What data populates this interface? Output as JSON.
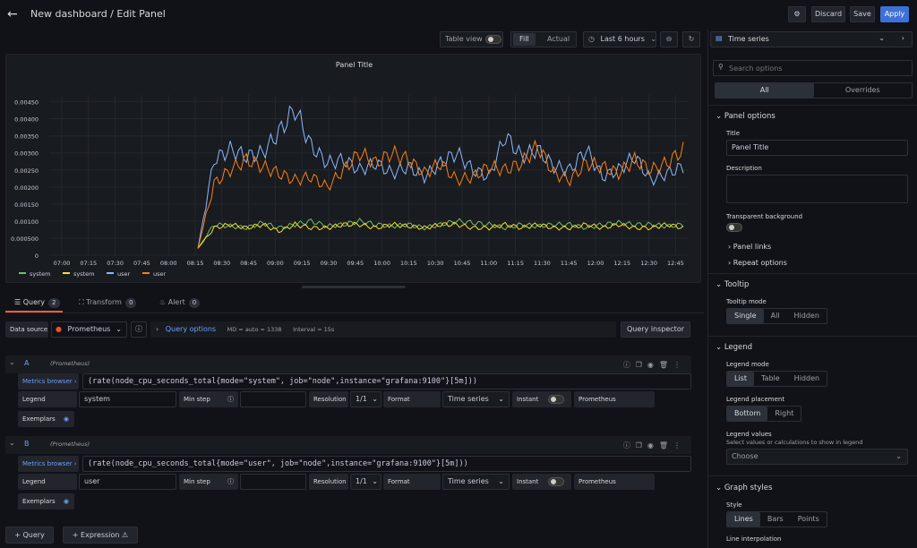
{
  "header": {
    "title": "New dashboard / Edit Panel",
    "discard": "Discard",
    "save": "Save",
    "apply": "Apply"
  },
  "toolbar": {
    "table_view": "Table view",
    "fill": "Fill",
    "actual": "Actual",
    "time_range": "Last 6 hours"
  },
  "panel": {
    "title": "Panel Title"
  },
  "chart_data": {
    "type": "line",
    "title": "Panel Title",
    "x_ticks": [
      "07:00",
      "07:15",
      "07:30",
      "07:45",
      "08:00",
      "08:15",
      "08:30",
      "08:45",
      "09:00",
      "09:15",
      "09:30",
      "09:45",
      "10:00",
      "10:15",
      "10:30",
      "10:45",
      "11:00",
      "11:15",
      "11:30",
      "11:45",
      "12:00",
      "12:15",
      "12:30",
      "12:45"
    ],
    "y_ticks": [
      "0",
      "0.000500",
      "0.00100",
      "0.00150",
      "0.00200",
      "0.00250",
      "0.00300",
      "0.00350",
      "0.00400",
      "0.00450"
    ],
    "ylim": [
      0,
      0.0047
    ],
    "legend_placement": "bottom",
    "series": [
      {
        "name": "system",
        "color": "#73bf69",
        "values": [
          0.0002,
          0.0009,
          0.00085,
          0.0008,
          0.00095,
          0.0008,
          0.0009,
          0.001,
          0.00085,
          0.0009,
          0.001,
          0.0009,
          0.00085,
          0.0009,
          0.0008,
          0.0009,
          0.001,
          0.00095,
          0.0009,
          0.0008,
          0.0009,
          0.00085,
          0.0009,
          0.0009,
          0.0008,
          0.0009,
          0.00095,
          0.0009,
          0.0009,
          0.00085,
          0.0009
        ]
      },
      {
        "name": "system",
        "color": "#fade2a",
        "values": [
          0.0002,
          0.0008,
          0.0009,
          0.0008,
          0.0009,
          0.0007,
          0.0009,
          0.0008,
          0.0008,
          0.0009,
          0.0009,
          0.0008,
          0.0009,
          0.00085,
          0.0008,
          0.0009,
          0.0009,
          0.0008,
          0.0008,
          0.0009,
          0.0008,
          0.0009,
          0.0008,
          0.0008,
          0.0009,
          0.0008,
          0.0009,
          0.0008,
          0.0008,
          0.0009,
          0.0008
        ]
      },
      {
        "name": "user",
        "color": "#8ab8ff",
        "values": [
          0.0002,
          0.0028,
          0.0031,
          0.0029,
          0.003,
          0.0036,
          0.0043,
          0.0032,
          0.0027,
          0.0028,
          0.0025,
          0.0027,
          0.0024,
          0.0026,
          0.0023,
          0.0027,
          0.003,
          0.0025,
          0.0023,
          0.0035,
          0.0029,
          0.0031,
          0.0026,
          0.0025,
          0.0031,
          0.0023,
          0.0025,
          0.0029,
          0.0022,
          0.0024,
          0.0026
        ]
      },
      {
        "name": "user",
        "color": "#ff7f0e",
        "values": [
          0.0002,
          0.0021,
          0.0025,
          0.0028,
          0.0026,
          0.0024,
          0.0022,
          0.0023,
          0.002,
          0.0025,
          0.003,
          0.0027,
          0.003,
          0.0028,
          0.0024,
          0.0027,
          0.0022,
          0.0023,
          0.0026,
          0.0025,
          0.0027,
          0.0032,
          0.0024,
          0.0022,
          0.0027,
          0.0026,
          0.0024,
          0.0028,
          0.0025,
          0.0027,
          0.0031
        ]
      }
    ]
  },
  "tabs": [
    {
      "label": "Query",
      "count": "2"
    },
    {
      "label": "Transform",
      "count": "0"
    },
    {
      "label": "Alert",
      "count": "0"
    }
  ],
  "datasource": {
    "label": "Data source",
    "value": "Prometheus",
    "query_options": "Query options",
    "md": "MD = auto = 1338",
    "interval": "Interval = 15s",
    "inspector": "Query inspector"
  },
  "queries": [
    {
      "letter": "A",
      "source": "(Prometheus)",
      "browser": "Metrics browser",
      "expr": "(rate(node_cpu_seconds_total{mode=\"system\", job=\"node\",instance=\"grafana:9100\"}[5m]))",
      "legend_label": "Legend",
      "legend_value": "system",
      "min_step": "Min step",
      "resolution": "Resolution",
      "resolution_value": "1/1",
      "format": "Format",
      "format_value": "Time series",
      "instant": "Instant",
      "type": "Prometheus",
      "exemplars": "Exemplars"
    },
    {
      "letter": "B",
      "source": "(Prometheus)",
      "browser": "Metrics browser",
      "expr": "(rate(node_cpu_seconds_total{mode=\"user\", job=\"node\",instance=\"grafana:9100\"}[5m]))",
      "legend_label": "Legend",
      "legend_value": "user",
      "min_step": "Min step",
      "resolution": "Resolution",
      "resolution_value": "1/1",
      "format": "Format",
      "format_value": "Time series",
      "instant": "Instant",
      "type": "Prometheus",
      "exemplars": "Exemplars"
    }
  ],
  "bottom": {
    "add_query": "Query",
    "add_expression": "Expression"
  },
  "options": {
    "viz": "Time series",
    "search_placeholder": "Search options",
    "all": "All",
    "overrides": "Overrides",
    "panel_options": "Panel options",
    "title_label": "Title",
    "title_value": "Panel Title",
    "description_label": "Description",
    "transparent_label": "Transparent background",
    "panel_links": "Panel links",
    "repeat_options": "Repeat options",
    "tooltip": "Tooltip",
    "tooltip_mode": "Tooltip mode",
    "tooltip_opts": [
      "Single",
      "All",
      "Hidden"
    ],
    "legend": "Legend",
    "legend_mode": "Legend mode",
    "legend_mode_opts": [
      "List",
      "Table",
      "Hidden"
    ],
    "legend_placement": "Legend placement",
    "legend_placement_opts": [
      "Bottom",
      "Right"
    ],
    "legend_values": "Legend values",
    "legend_values_sub": "Select values or calculations to show in legend",
    "choose": "Choose",
    "graph_styles": "Graph styles",
    "style": "Style",
    "style_opts": [
      "Lines",
      "Bars",
      "Points"
    ],
    "line_interpolation": "Line interpolation"
  }
}
